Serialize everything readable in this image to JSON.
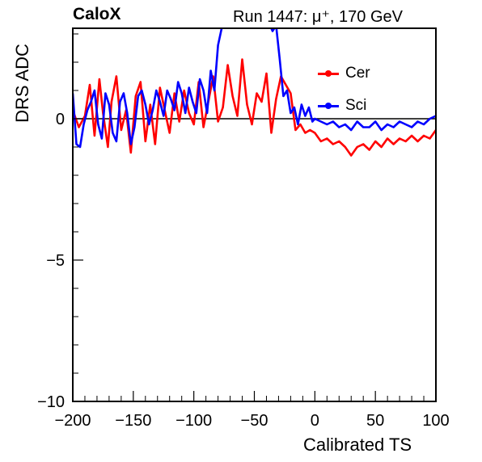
{
  "header": {
    "brand": "CaloX",
    "run_info": "Run 1447:   μ⁺, 170 GeV"
  },
  "chart_data": {
    "type": "line",
    "title": "",
    "xlabel": "Calibrated TS",
    "ylabel": "DRS ADC",
    "xlim": [
      -200,
      100
    ],
    "ylim": [
      -10,
      3.2
    ],
    "xticks": [
      -200,
      -150,
      -100,
      -50,
      0,
      50,
      100
    ],
    "xtick_labels": [
      "−200",
      "−150",
      "−100",
      "−50",
      "0",
      "50",
      "100"
    ],
    "yticks": [
      -10,
      -5,
      0
    ],
    "ytick_labels": [
      "−10",
      "−5",
      "0"
    ],
    "grid": false,
    "reference_line_y": 0,
    "legend_position": "top-right",
    "series": [
      {
        "name": "Cer",
        "color": "#ff0000",
        "x": [
          -200,
          -195,
          -190,
          -186,
          -182,
          -178,
          -175,
          -171,
          -168,
          -164,
          -160,
          -156,
          -152,
          -148,
          -144,
          -140,
          -136,
          -132,
          -128,
          -124,
          -120,
          -116,
          -112,
          -108,
          -104,
          -100,
          -96,
          -92,
          -88,
          -84,
          -80,
          -76,
          -72,
          -68,
          -64,
          -60,
          -56,
          -52,
          -48,
          -44,
          -40,
          -36,
          -32,
          -28,
          -24,
          -20,
          -16,
          -12,
          -8,
          -4,
          0,
          5,
          10,
          15,
          20,
          25,
          30,
          35,
          40,
          45,
          50,
          55,
          60,
          65,
          70,
          75,
          80,
          85,
          90,
          95,
          100
        ],
        "y": [
          0.3,
          -0.3,
          0.1,
          1.2,
          -0.6,
          1.4,
          0.2,
          -1.0,
          0.6,
          1.5,
          -0.4,
          0.3,
          -1.2,
          0.8,
          1.3,
          -0.8,
          0.5,
          -0.9,
          1.1,
          0.3,
          -0.5,
          0.9,
          -0.1,
          1.0,
          0.2,
          -0.2,
          1.3,
          -0.3,
          0.6,
          1.5,
          -0.1,
          0.4,
          1.9,
          0.8,
          0.1,
          2.1,
          0.5,
          -0.2,
          0.9,
          0.6,
          1.6,
          -0.5,
          0.7,
          1.5,
          1.2,
          0.9,
          -0.4,
          -0.2,
          -0.5,
          -0.4,
          -0.5,
          -0.8,
          -0.7,
          -0.9,
          -0.8,
          -1.0,
          -1.3,
          -1.0,
          -0.9,
          -1.1,
          -0.8,
          -1.0,
          -0.7,
          -0.9,
          -0.7,
          -0.8,
          -0.6,
          -0.8,
          -0.6,
          -0.7,
          -0.4
        ]
      },
      {
        "name": "Sci",
        "color": "#0000ff",
        "x": [
          -200,
          -197,
          -194,
          -191,
          -188,
          -185,
          -182,
          -179,
          -176,
          -173,
          -170,
          -167,
          -164,
          -161,
          -158,
          -155,
          -152,
          -149,
          -146,
          -143,
          -140,
          -137,
          -134,
          -131,
          -128,
          -125,
          -122,
          -119,
          -116,
          -113,
          -110,
          -107,
          -104,
          -101,
          -98,
          -95,
          -92,
          -89,
          -86,
          -83,
          -80,
          -77,
          -74,
          -71,
          -68,
          -65,
          -62,
          -59,
          -56,
          -53,
          -50,
          -47,
          -44,
          -41,
          -38,
          -35,
          -32,
          -29,
          -26,
          -23,
          -20,
          -17,
          -14,
          -11,
          -8,
          -5,
          -2,
          0,
          5,
          10,
          15,
          20,
          25,
          30,
          35,
          40,
          45,
          50,
          55,
          60,
          65,
          70,
          75,
          80,
          85,
          90,
          95,
          100
        ],
        "y": [
          0.9,
          -0.9,
          -1.0,
          -0.2,
          0.3,
          0.6,
          1.0,
          -0.2,
          -0.7,
          0.9,
          0.5,
          -0.5,
          -0.8,
          0.6,
          0.9,
          0.2,
          -0.9,
          -0.3,
          0.8,
          1.0,
          0.5,
          -0.2,
          0.3,
          1.0,
          0.6,
          0.1,
          1.0,
          0.7,
          0.3,
          1.3,
          0.9,
          0.2,
          1.1,
          0.6,
          0.2,
          1.4,
          1.0,
          0.2,
          1.7,
          1.0,
          2.6,
          3.2,
          3.3,
          3.4,
          3.4,
          3.4,
          3.4,
          3.4,
          3.4,
          3.4,
          3.4,
          3.4,
          3.4,
          3.4,
          3.4,
          3.1,
          3.3,
          2.1,
          0.8,
          1.0,
          0.2,
          0.4,
          -0.2,
          0.5,
          0.1,
          0.4,
          -0.1,
          0.0,
          -0.1,
          -0.2,
          -0.1,
          -0.3,
          -0.2,
          -0.4,
          -0.1,
          -0.3,
          -0.3,
          -0.1,
          -0.4,
          -0.2,
          -0.3,
          -0.1,
          -0.2,
          -0.3,
          -0.1,
          -0.2,
          0.0,
          0.1
        ]
      }
    ]
  }
}
